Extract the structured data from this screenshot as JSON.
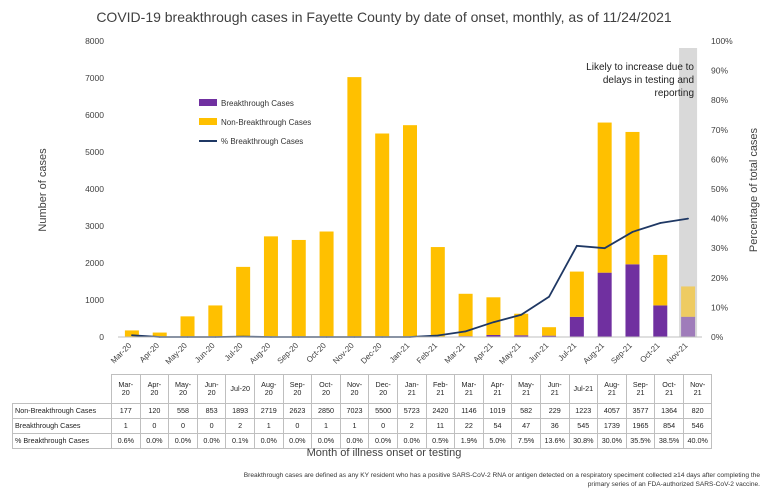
{
  "colors": {
    "breakthrough": "#7030a0",
    "non_breakthrough": "#ffc000",
    "pct_line": "#1f3864",
    "shade": "#d9d9d9",
    "axis_text": "#404040",
    "gridline": "#d9d9d9"
  },
  "chart_data": {
    "type": "bar",
    "stacked": true,
    "title": "COVID-19 breakthrough cases in Fayette County by date of onset, monthly, as of 11/24/2021",
    "xlabel": "Month of illness onset or testing",
    "ylabel": "Number of cases",
    "y2label": "Percentage of total cases",
    "ylim": [
      0,
      8000
    ],
    "y2lim": [
      0,
      100
    ],
    "yticks": [
      "0",
      "1000",
      "2000",
      "3000",
      "4000",
      "5000",
      "6000",
      "7000",
      "8000"
    ],
    "y2ticks": [
      "0%",
      "10%",
      "20%",
      "30%",
      "40%",
      "50%",
      "60%",
      "70%",
      "80%",
      "90%",
      "100%"
    ],
    "categories": [
      "Mar-20",
      "Apr-20",
      "May-20",
      "Jun-20",
      "Jul-20",
      "Aug-20",
      "Sep-20",
      "Oct-20",
      "Nov-20",
      "Dec-20",
      "Jan-21",
      "Feb-21",
      "Mar-21",
      "Apr-21",
      "May-21",
      "Jun-21",
      "Jul-21",
      "Aug-21",
      "Sep-21",
      "Oct-21",
      "Nov-21"
    ],
    "series": [
      {
        "name": "Breakthrough Cases",
        "type": "bar",
        "values": [
          1,
          0,
          0,
          0,
          2,
          1,
          0,
          1,
          1,
          0,
          2,
          11,
          22,
          54,
          47,
          36,
          545,
          1739,
          1965,
          854,
          546
        ]
      },
      {
        "name": "Non-Breakthrough Cases",
        "type": "bar",
        "values": [
          177,
          120,
          558,
          853,
          1893,
          2719,
          2623,
          2850,
          7023,
          5500,
          5723,
          2420,
          1146,
          1019,
          582,
          229,
          1223,
          4057,
          3577,
          1364,
          820
        ]
      },
      {
        "name": "% Breakthrough Cases",
        "type": "line",
        "axis": "right",
        "values": [
          0.6,
          0.0,
          0.0,
          0.0,
          0.1,
          0.0,
          0.0,
          0.0,
          0.0,
          0.0,
          0.0,
          0.5,
          1.9,
          5.0,
          7.5,
          13.6,
          30.8,
          30.0,
          35.5,
          38.5,
          40.0
        ]
      }
    ],
    "annotation": "Likely to increase due to delays in testing and reporting",
    "shaded_category": "Nov-21",
    "legend_position": "upper-left inside plot",
    "grid": false
  },
  "table": {
    "header_labels": [
      "Mar-\n20",
      "Apr-\n20",
      "May-\n20",
      "Jun-\n20",
      "Jul-20",
      "Aug-\n20",
      "Sep-\n20",
      "Oct-\n20",
      "Nov-\n20",
      "Dec-\n20",
      "Jan-\n21",
      "Feb-\n21",
      "Mar-\n21",
      "Apr-\n21",
      "May-\n21",
      "Jun-\n21",
      "Jul-21",
      "Aug-\n21",
      "Sep-\n21",
      "Oct-\n21",
      "Nov-\n21"
    ],
    "rows": [
      {
        "label": "Non-Breakthrough Cases",
        "cells": [
          "177",
          "120",
          "558",
          "853",
          "1893",
          "2719",
          "2623",
          "2850",
          "7023",
          "5500",
          "5723",
          "2420",
          "1146",
          "1019",
          "582",
          "229",
          "1223",
          "4057",
          "3577",
          "1364",
          "820"
        ]
      },
      {
        "label": "Breakthrough Cases",
        "cells": [
          "1",
          "0",
          "0",
          "0",
          "2",
          "1",
          "0",
          "1",
          "1",
          "0",
          "2",
          "11",
          "22",
          "54",
          "47",
          "36",
          "545",
          "1739",
          "1965",
          "854",
          "546"
        ]
      },
      {
        "label": "% Breakthrough Cases",
        "cells": [
          "0.6%",
          "0.0%",
          "0.0%",
          "0.0%",
          "0.1%",
          "0.0%",
          "0.0%",
          "0.0%",
          "0.0%",
          "0.0%",
          "0.0%",
          "0.5%",
          "1.9%",
          "5.0%",
          "7.5%",
          "13.6%",
          "30.8%",
          "30.0%",
          "35.5%",
          "38.5%",
          "40.0%"
        ]
      }
    ]
  },
  "footnote": "Breakthrough cases are defined as any KY resident who has a positive SARS-CoV-2 RNA or antigen detected on a respiratory speciment collected ≥14 days after completing the primary series of an FDA-authorized SARS-CoV-2 vaccine."
}
